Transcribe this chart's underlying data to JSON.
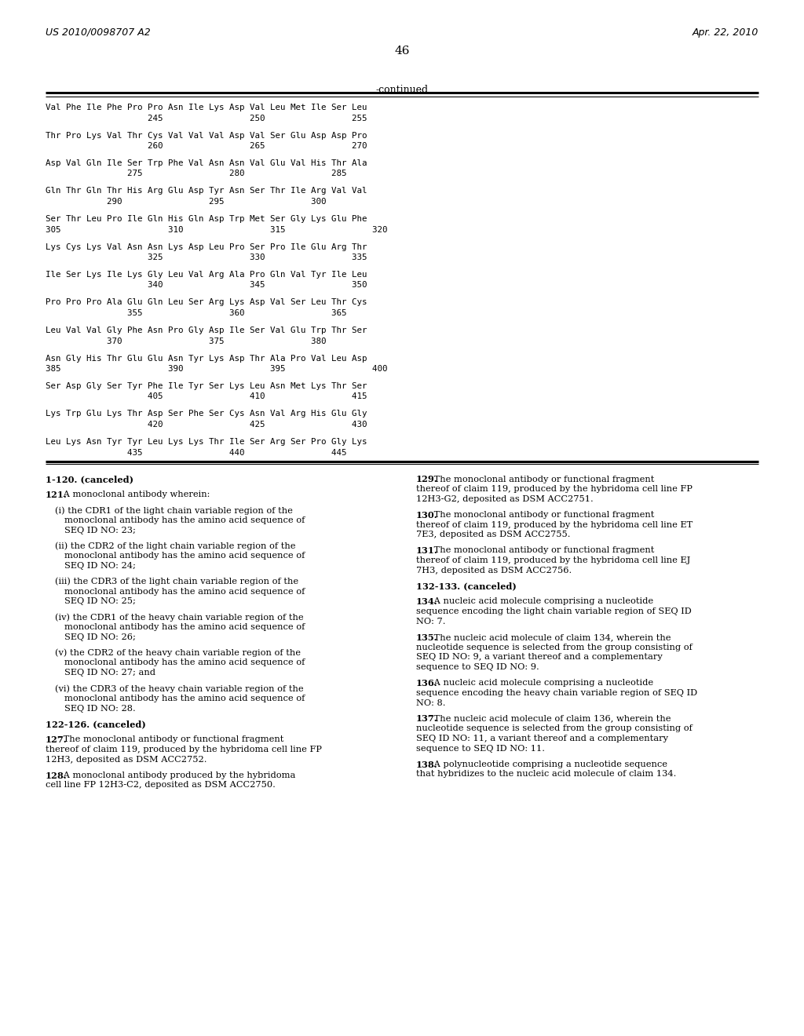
{
  "bg_color": "#ffffff",
  "header_left": "US 2010/0098707 A2",
  "header_right": "Apr. 22, 2010",
  "page_number": "46",
  "continued_label": "-continued",
  "sequence_lines": [
    [
      "Val Phe Ile Phe Pro Pro Asn Ile Lys Asp Val Leu Met Ile Ser Leu",
      "                    245                 250                 255"
    ],
    [
      "Thr Pro Lys Val Thr Cys Val Val Val Asp Val Ser Glu Asp Asp Pro",
      "                    260                 265                 270"
    ],
    [
      "Asp Val Gln Ile Ser Trp Phe Val Asn Asn Val Glu Val His Thr Ala",
      "                275                 280                 285"
    ],
    [
      "Gln Thr Gln Thr His Arg Glu Asp Tyr Asn Ser Thr Ile Arg Val Val",
      "            290                 295                 300"
    ],
    [
      "Ser Thr Leu Pro Ile Gln His Gln Asp Trp Met Ser Gly Lys Glu Phe",
      "305                     310                 315                 320"
    ],
    [
      "Lys Cys Lys Val Asn Asn Lys Asp Leu Pro Ser Pro Ile Glu Arg Thr",
      "                    325                 330                 335"
    ],
    [
      "Ile Ser Lys Ile Lys Gly Leu Val Arg Ala Pro Gln Val Tyr Ile Leu",
      "                    340                 345                 350"
    ],
    [
      "Pro Pro Pro Ala Glu Gln Leu Ser Arg Lys Asp Val Ser Leu Thr Cys",
      "                355                 360                 365"
    ],
    [
      "Leu Val Val Gly Phe Asn Pro Gly Asp Ile Ser Val Glu Trp Thr Ser",
      "            370                 375                 380"
    ],
    [
      "Asn Gly His Thr Glu Glu Asn Tyr Lys Asp Thr Ala Pro Val Leu Asp",
      "385                     390                 395                 400"
    ],
    [
      "Ser Asp Gly Ser Tyr Phe Ile Tyr Ser Lys Leu Asn Met Lys Thr Ser",
      "                    405                 410                 415"
    ],
    [
      "Lys Trp Glu Lys Thr Asp Ser Phe Ser Cys Asn Val Arg His Glu Gly",
      "                    420                 425                 430"
    ],
    [
      "Leu Lys Asn Tyr Tyr Leu Lys Lys Thr Ile Ser Arg Ser Pro Gly Lys",
      "                435                 440                 445"
    ]
  ]
}
